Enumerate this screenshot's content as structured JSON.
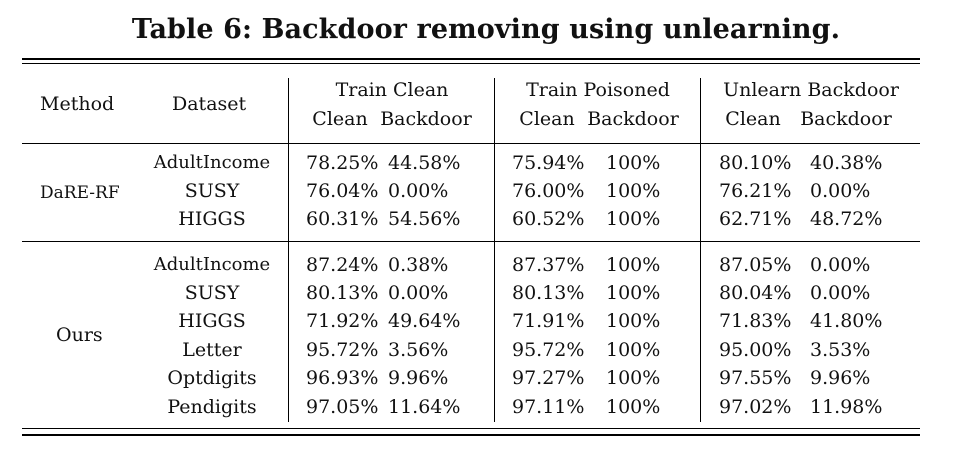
{
  "caption": "Table 6: Backdoor removing using unlearning.",
  "header": {
    "method": "Method",
    "dataset": "Dataset",
    "groups": [
      "Train Clean",
      "Train Poisoned",
      "Unlearn Backdoor"
    ],
    "sub": [
      "Clean",
      "Backdoor"
    ]
  },
  "sections": [
    {
      "method": "DaRE-RF",
      "rows": [
        {
          "dataset": "AdultIncome",
          "values": [
            "78.25%",
            "44.58%",
            "75.94%",
            "100%",
            "80.10%",
            "40.38%"
          ]
        },
        {
          "dataset": "SUSY",
          "values": [
            "76.04%",
            "0.00%",
            "76.00%",
            "100%",
            "76.21%",
            "0.00%"
          ]
        },
        {
          "dataset": "HIGGS",
          "values": [
            "60.31%",
            "54.56%",
            "60.52%",
            "100%",
            "62.71%",
            "48.72%"
          ]
        }
      ]
    },
    {
      "method": "Ours",
      "rows": [
        {
          "dataset": "AdultIncome",
          "values": [
            "87.24%",
            "0.38%",
            "87.37%",
            "100%",
            "87.05%",
            "0.00%"
          ]
        },
        {
          "dataset": "SUSY",
          "values": [
            "80.13%",
            "0.00%",
            "80.13%",
            "100%",
            "80.04%",
            "0.00%"
          ]
        },
        {
          "dataset": "HIGGS",
          "values": [
            "71.92%",
            "49.64%",
            "71.91%",
            "100%",
            "71.83%",
            "41.80%"
          ]
        },
        {
          "dataset": "Letter",
          "values": [
            "95.72%",
            "3.56%",
            "95.72%",
            "100%",
            "95.00%",
            "3.53%"
          ]
        },
        {
          "dataset": "Optdigits",
          "values": [
            "96.93%",
            "9.96%",
            "97.27%",
            "100%",
            "97.55%",
            "9.96%"
          ]
        },
        {
          "dataset": "Pendigits",
          "values": [
            "97.05%",
            "11.64%",
            "97.11%",
            "100%",
            "97.02%",
            "11.98%"
          ]
        }
      ]
    }
  ]
}
